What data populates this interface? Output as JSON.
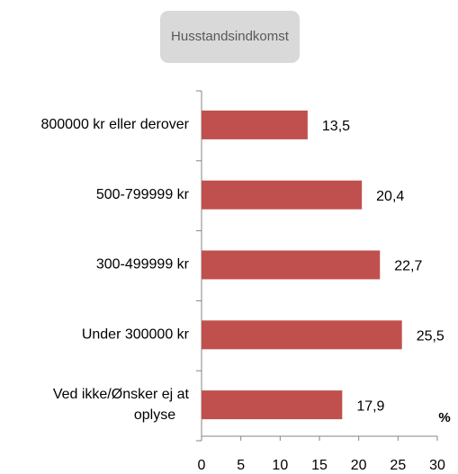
{
  "chart_data": {
    "type": "bar",
    "orientation": "horizontal",
    "title": "Husstandsindkomst",
    "categories": [
      "800000 kr eller derover",
      "500-799999 kr",
      "300-499999 kr",
      "Under 300000 kr",
      "Ved ikke/Ønsker ej at oplyse"
    ],
    "values": [
      13.5,
      20.4,
      22.7,
      25.5,
      17.9
    ],
    "value_labels": [
      "13,5",
      "20,4",
      "22,7",
      "25,5",
      "17,9"
    ],
    "color": "#c0504d",
    "xlabel": "%",
    "xlim": [
      0,
      30
    ],
    "xticks": [
      0,
      5,
      10,
      15,
      20,
      25,
      30
    ]
  }
}
